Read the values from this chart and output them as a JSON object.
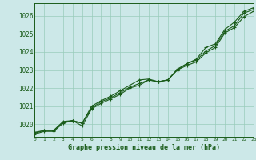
{
  "title": "Graphe pression niveau de la mer (hPa)",
  "xlabel_ticks": [
    "0",
    "1",
    "2",
    "3",
    "4",
    "5",
    "6",
    "7",
    "8",
    "9",
    "10",
    "11",
    "12",
    "13",
    "14",
    "15",
    "16",
    "17",
    "18",
    "19",
    "20",
    "21",
    "22",
    "23"
  ],
  "ylim": [
    1019.3,
    1026.7
  ],
  "yticks": [
    1020,
    1021,
    1022,
    1023,
    1024,
    1025,
    1026
  ],
  "xlim": [
    0,
    23
  ],
  "background_color": "#cce8e8",
  "grid_color": "#99ccbb",
  "line_color": "#1a5c1a",
  "line1": [
    1019.5,
    1019.65,
    1019.65,
    1020.1,
    1020.2,
    1020.05,
    1020.9,
    1021.25,
    1021.45,
    1021.75,
    1022.05,
    1022.25,
    1022.45,
    1022.35,
    1022.45,
    1023.05,
    1023.35,
    1023.55,
    1024.05,
    1024.35,
    1025.15,
    1025.45,
    1026.15,
    1026.35
  ],
  "line2": [
    1019.55,
    1019.65,
    1019.65,
    1020.15,
    1020.2,
    1020.05,
    1021.0,
    1021.3,
    1021.55,
    1021.85,
    1022.15,
    1022.45,
    1022.5,
    1022.35,
    1022.45,
    1023.0,
    1023.35,
    1023.6,
    1024.25,
    1024.45,
    1025.25,
    1025.65,
    1026.25,
    1026.45
  ],
  "line3": [
    1019.45,
    1019.6,
    1019.6,
    1020.05,
    1020.2,
    1019.9,
    1020.85,
    1021.15,
    1021.4,
    1021.65,
    1022.0,
    1022.15,
    1022.45,
    1022.35,
    1022.45,
    1023.0,
    1023.25,
    1023.45,
    1023.95,
    1024.25,
    1025.05,
    1025.35,
    1025.95,
    1026.25
  ]
}
